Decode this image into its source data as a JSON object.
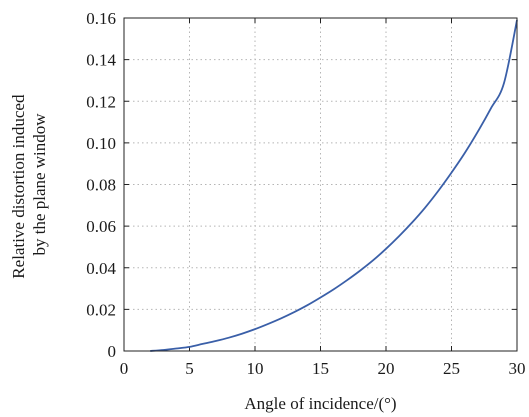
{
  "chart_data": {
    "type": "line",
    "title": "",
    "xlabel": "Angle of incidence/(°)",
    "ylabel_lines": [
      "Relative distortion induced",
      "by the plane window"
    ],
    "xlim": [
      0,
      30
    ],
    "ylim": [
      0,
      0.16
    ],
    "x_ticks": [
      0,
      5,
      10,
      15,
      20,
      25,
      30
    ],
    "x_tick_labels": [
      "0",
      "5",
      "10",
      "15",
      "20",
      "25",
      "30"
    ],
    "y_ticks": [
      0,
      0.02,
      0.04,
      0.06,
      0.08,
      0.1,
      0.12,
      0.14,
      0.16
    ],
    "y_tick_labels": [
      "0",
      "0.02",
      "0.04",
      "0.06",
      "0.08",
      "0.10",
      "0.12",
      "0.14",
      "0.16"
    ],
    "grid": true,
    "series": [
      {
        "color": "#3a5fa8",
        "x": [
          2,
          3,
          4,
          5,
          6,
          7,
          8,
          9,
          10,
          11,
          12,
          13,
          14,
          15,
          16,
          17,
          18,
          19,
          20,
          21,
          22,
          23,
          24,
          25,
          26,
          27,
          28,
          29,
          30
        ],
        "y": [
          0.0,
          0.0005,
          0.0012,
          0.002,
          0.0034,
          0.0048,
          0.0064,
          0.0083,
          0.0105,
          0.013,
          0.0157,
          0.0187,
          0.022,
          0.0257,
          0.0296,
          0.0339,
          0.0385,
          0.0435,
          0.0491,
          0.0552,
          0.0618,
          0.069,
          0.077,
          0.0857,
          0.095,
          0.1053,
          0.1165,
          0.1286,
          0.159
        ]
      }
    ]
  }
}
